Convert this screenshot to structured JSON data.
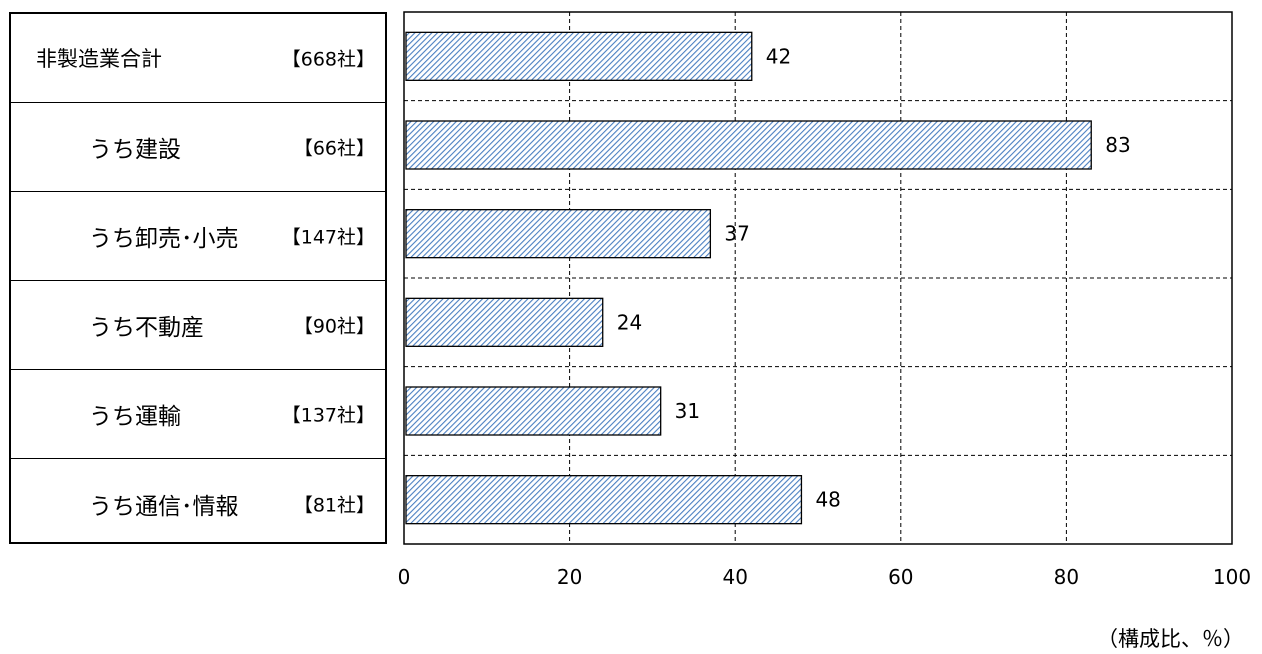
{
  "chart_data": {
    "type": "bar",
    "orientation": "horizontal",
    "rows": [
      {
        "name": "非製造業合計",
        "count": "【668社】",
        "value": 42,
        "label": "42"
      },
      {
        "name": "うち建設",
        "count": "【66社】",
        "value": 83,
        "label": "83"
      },
      {
        "name": "うち卸売･小売",
        "count": "【147社】",
        "value": 37,
        "label": "37"
      },
      {
        "name": "うち不動産",
        "count": "【90社】",
        "value": 24,
        "label": "24"
      },
      {
        "name": "うち運輸",
        "count": "【137社】",
        "value": 31,
        "label": "31"
      },
      {
        "name": "うち通信･情報",
        "count": "【81社】",
        "value": 48,
        "label": "48"
      }
    ],
    "xlim": [
      0,
      100
    ],
    "xticks": [
      "0",
      "20",
      "40",
      "60",
      "80",
      "100"
    ],
    "xlabel": "（構成比、％）",
    "grid": true,
    "bar_fill": "diagonal-hatch",
    "bar_color": "#4a7fc1"
  }
}
